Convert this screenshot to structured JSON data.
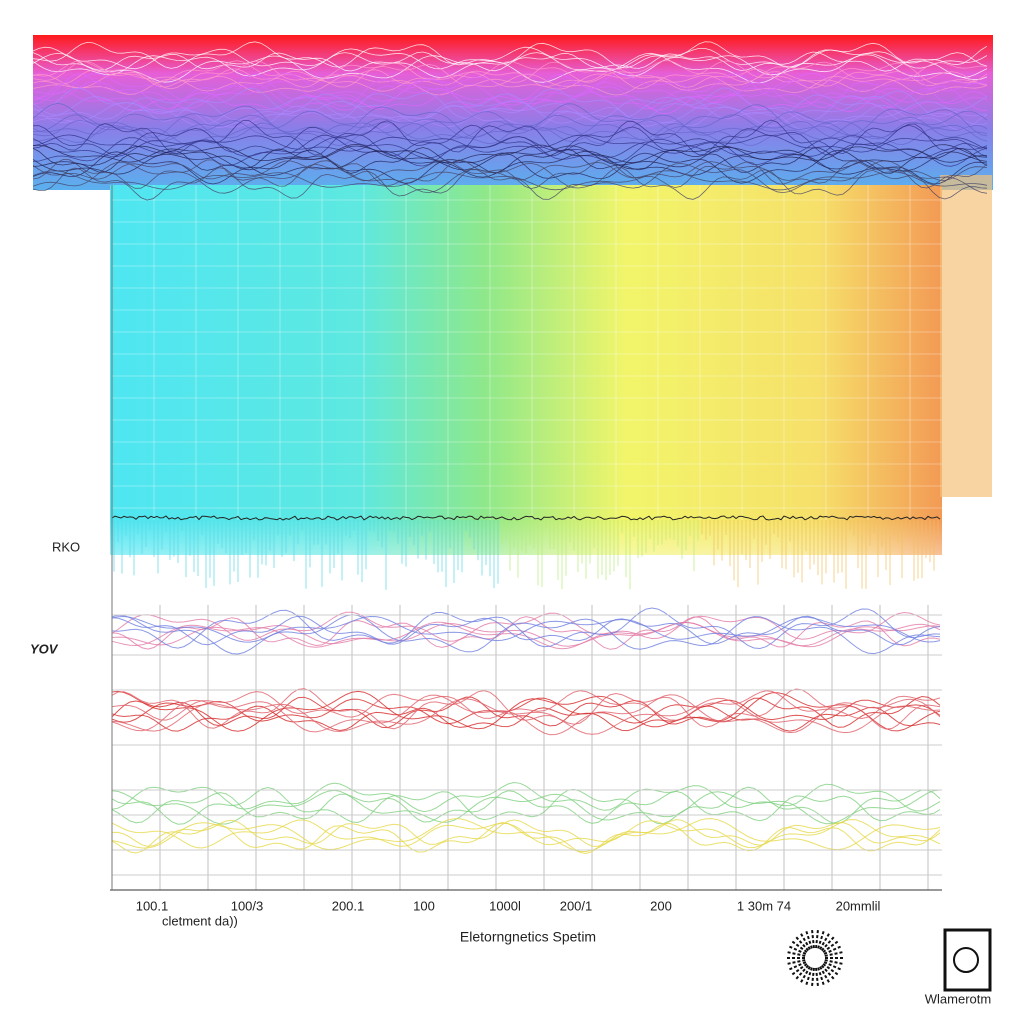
{
  "header": {
    "side_top": "RKO",
    "side_bottom": "YOV"
  },
  "axis": {
    "tick_labels": [
      "100.1",
      "100/3",
      "200.1",
      "100",
      "1000l",
      "200/1",
      "200",
      "1 30m 74",
      "20mmlil"
    ],
    "sub_label": "cletment da))",
    "title": "Eletorngnetics Spetim"
  },
  "footer": {
    "brand": "Wlamerotm"
  }
}
